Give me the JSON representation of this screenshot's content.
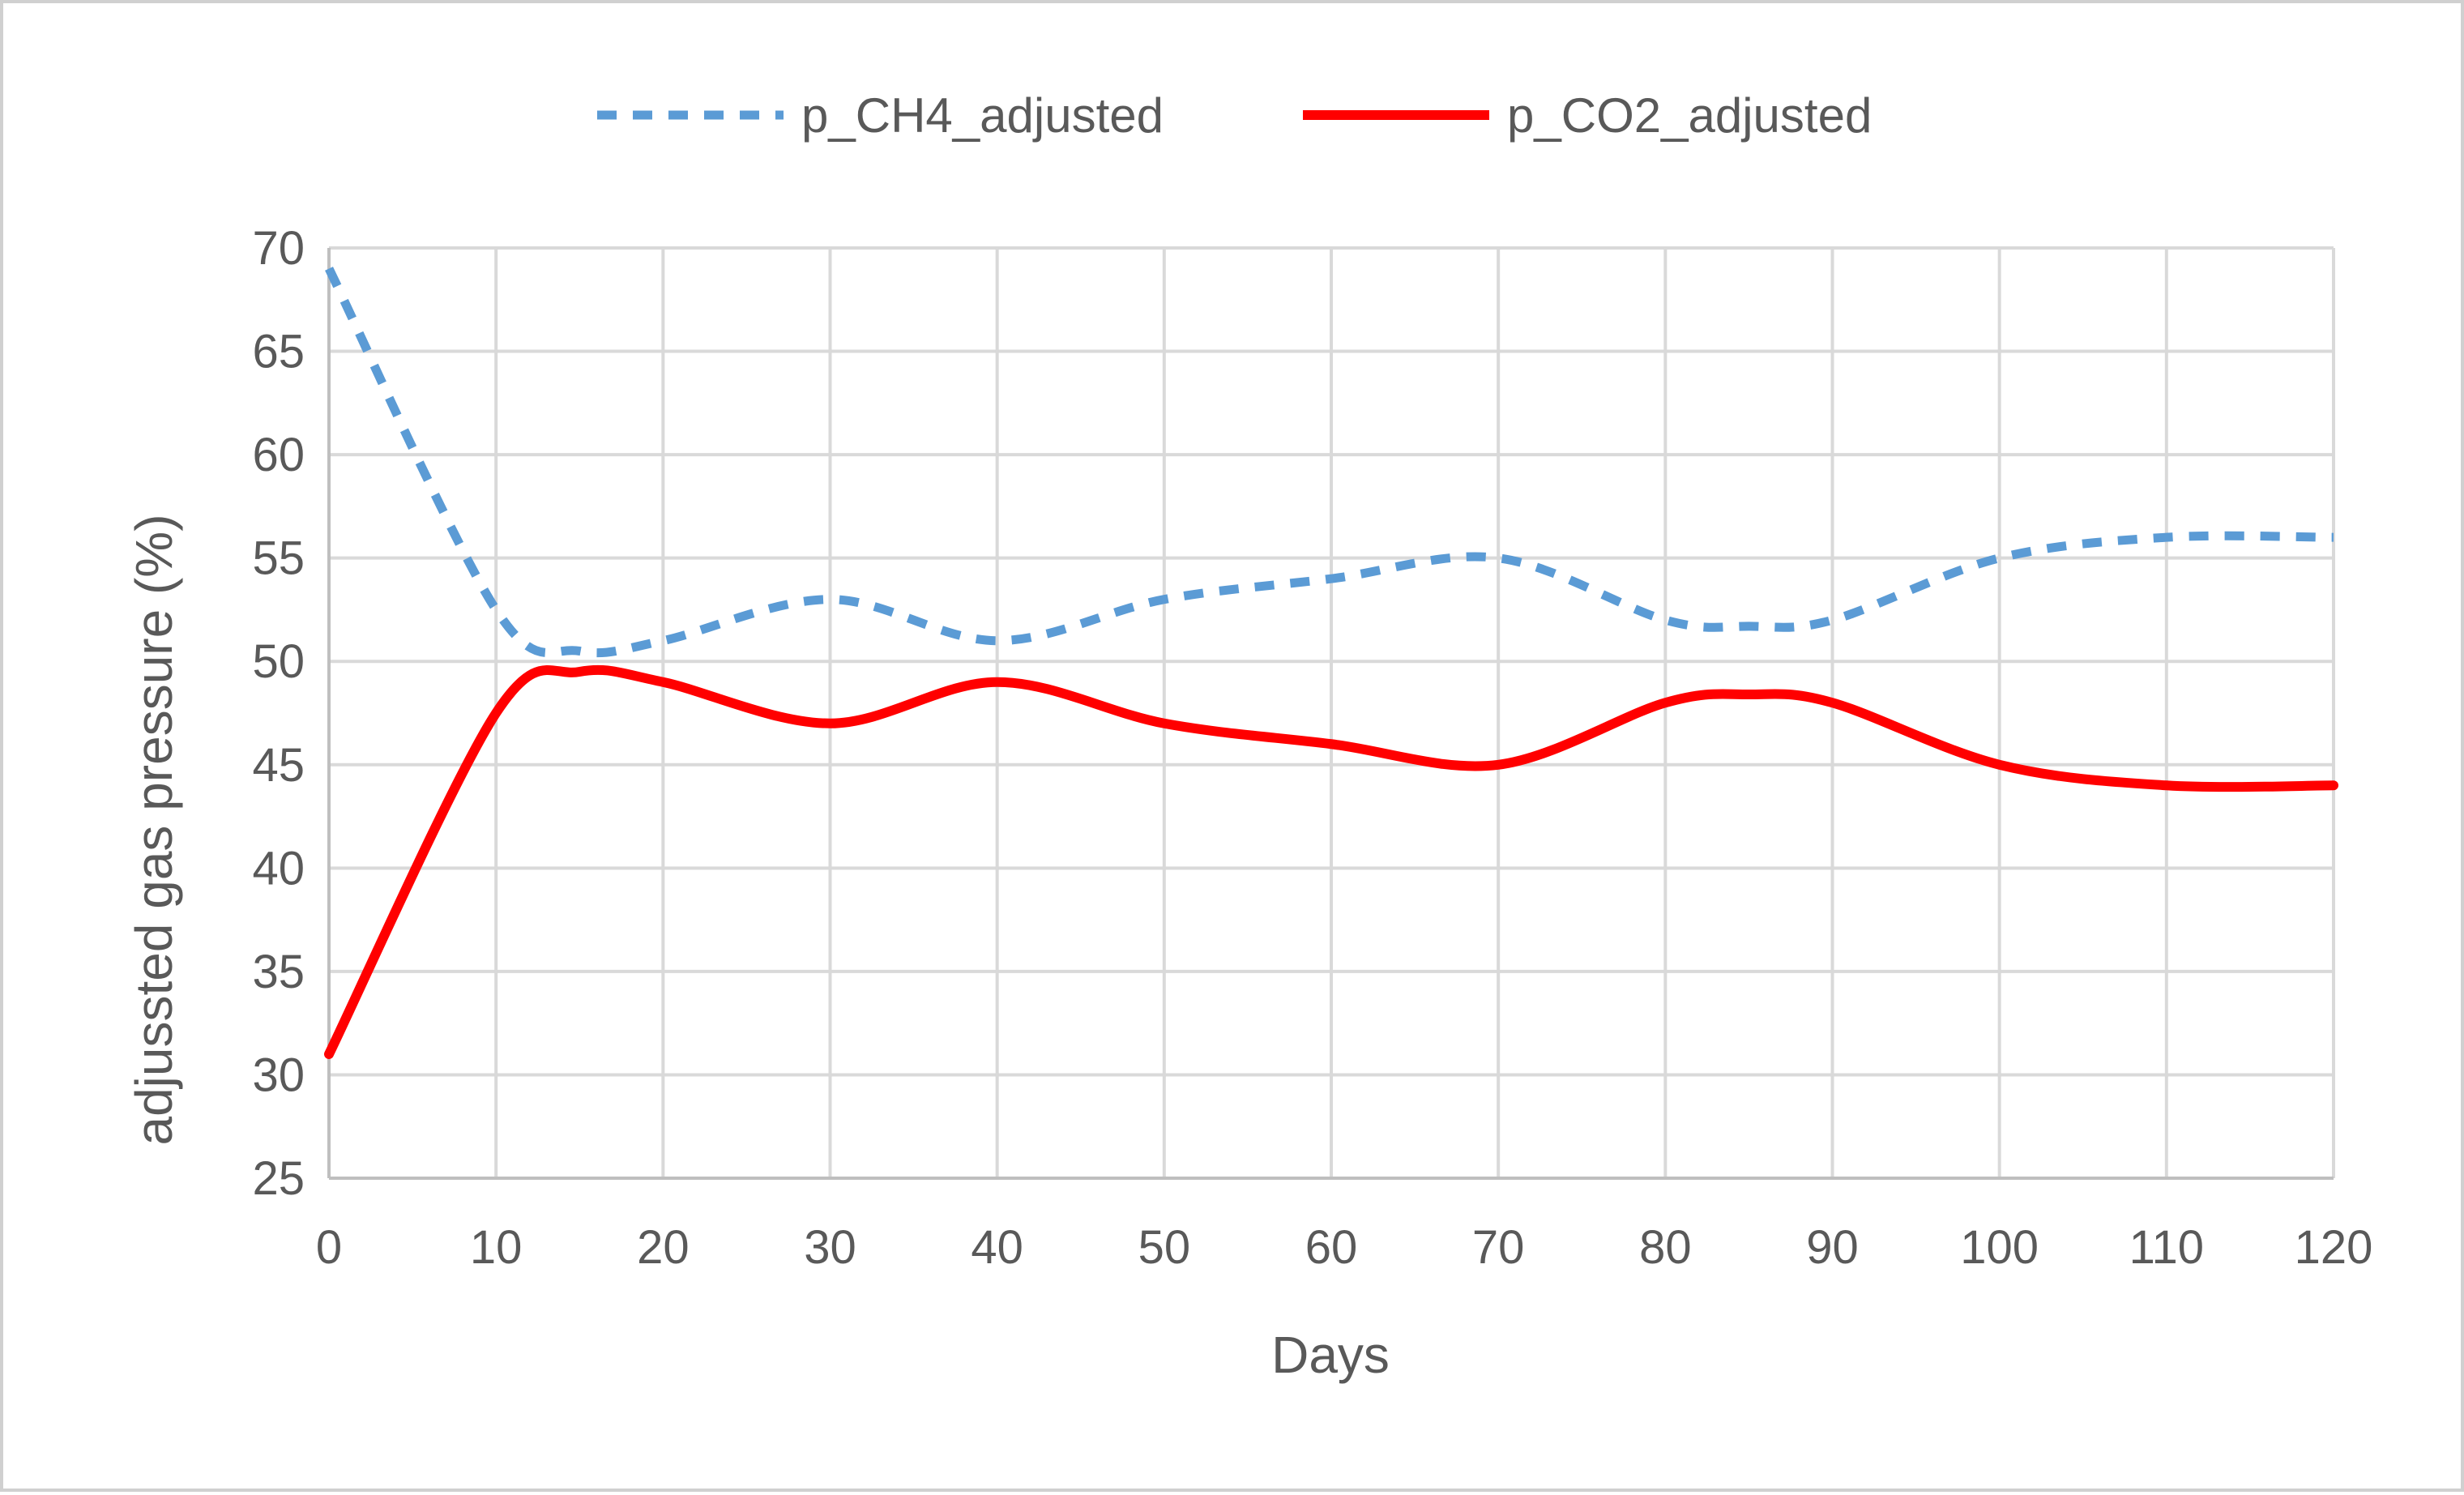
{
  "chart_data": {
    "type": "line",
    "title": "",
    "xlabel": "Days",
    "ylabel": "adjussted gas pressure (%)",
    "xlim": [
      0,
      120
    ],
    "ylim": [
      25,
      70
    ],
    "x_ticks": [
      "0",
      "10",
      "20",
      "30",
      "40",
      "50",
      "60",
      "70",
      "80",
      "90",
      "100",
      "110",
      "120"
    ],
    "y_ticks": [
      "25",
      "30",
      "35",
      "40",
      "45",
      "50",
      "55",
      "60",
      "65",
      "70"
    ],
    "grid": true,
    "legend_position": "top-center",
    "series": [
      {
        "name": "p_CH4_adjusted",
        "color": "#5B9BD5",
        "style": "dashed",
        "x": [
          0,
          10,
          15,
          20,
          30,
          40,
          50,
          60,
          70,
          80,
          85,
          90,
          100,
          110,
          120
        ],
        "values": [
          69,
          52.5,
          50.5,
          51,
          53,
          51,
          53,
          54,
          55,
          52,
          51.7,
          52,
          55,
          56,
          56
        ]
      },
      {
        "name": "p_CO2_adjusted",
        "color": "#FF0000",
        "style": "solid",
        "x": [
          0,
          10,
          15,
          20,
          30,
          40,
          50,
          60,
          70,
          80,
          85,
          90,
          100,
          110,
          120
        ],
        "values": [
          31,
          47.5,
          49.5,
          49,
          47,
          49,
          47,
          46,
          45,
          48,
          48.4,
          48,
          45,
          44,
          44
        ]
      }
    ]
  }
}
